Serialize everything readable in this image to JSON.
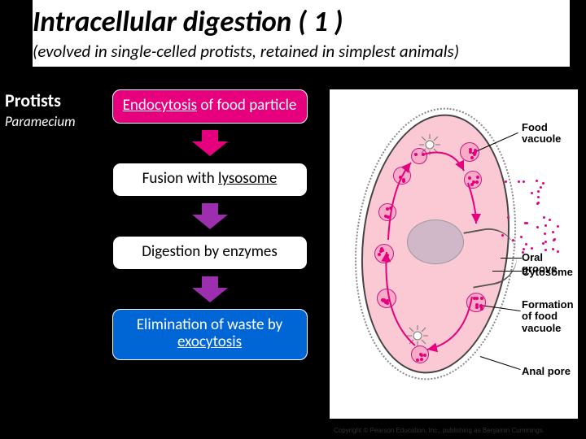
{
  "title": "Intracellular digestion ( 1 )",
  "subtitle": "(evolved in single-celled protists, retained in simplest animals)",
  "organism": {
    "main": "Protists",
    "example": "Paramecium"
  },
  "flow": {
    "steps": [
      {
        "text_pre": "",
        "text_ul": "Endocytosis",
        "text_post": " of food particle",
        "bg": "#e6007e",
        "fg": "#ffffff"
      },
      {
        "text_pre": "Fusion with ",
        "text_ul": "lysosome",
        "text_post": "",
        "bg": "#ffffff",
        "fg": "#000000"
      },
      {
        "text_pre": "Digestion by enzymes",
        "text_ul": "",
        "text_post": "",
        "bg": "#ffffff",
        "fg": "#000000"
      },
      {
        "text_pre": "Elimination of waste by ",
        "text_ul": "exocytosis",
        "text_post": "",
        "bg": "#0066d6",
        "fg": "#ffffff"
      }
    ],
    "arrows": [
      {
        "color": "#e6007e"
      },
      {
        "color": "#9b2fae"
      },
      {
        "color": "#9b2fae"
      }
    ]
  },
  "diagram": {
    "background": "#ffffff",
    "cell_fill": "#fbc9d4",
    "cell_border": "#444444",
    "accent": "#e6007e",
    "labels": {
      "food_vacuole": "Food\nvacuole",
      "oral_groove": "Oral groove",
      "cytosome": "Cytosome",
      "formation": "Formation\nof food\nvacuole",
      "anal_pore": "Anal pore"
    }
  },
  "copyright": "Copyright © Pearson Education, Inc., publishing as Benjamin Cummings."
}
